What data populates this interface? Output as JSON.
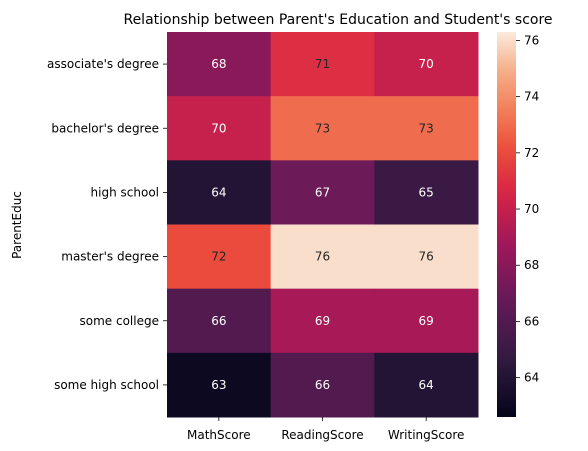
{
  "chart_data": {
    "type": "heatmap",
    "title": "Relationship between Parent's Education and Student's score",
    "ylabel": "ParentEduc",
    "xlabel": "",
    "rows": [
      "associate's degree",
      "bachelor's degree",
      "high school",
      "master's degree",
      "some college",
      "some high school"
    ],
    "columns": [
      "MathScore",
      "ReadingScore",
      "WritingScore"
    ],
    "values": [
      [
        68,
        71,
        70
      ],
      [
        70,
        73,
        73
      ],
      [
        64,
        67,
        65
      ],
      [
        72,
        76,
        76
      ],
      [
        66,
        69,
        69
      ],
      [
        63,
        66,
        64
      ]
    ],
    "colorbar": {
      "vmin": 62.6,
      "vmax": 76.3,
      "ticks": [
        64,
        66,
        68,
        70,
        72,
        74,
        76
      ],
      "colormap": "rocket"
    }
  }
}
